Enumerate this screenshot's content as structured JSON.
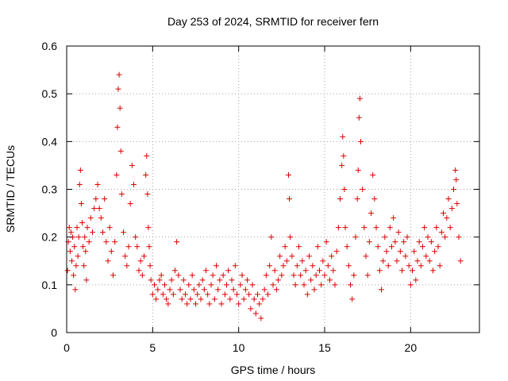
{
  "chart_data": {
    "type": "scatter",
    "title": "Day 253 of 2024, SRMTID for receiver fern",
    "xlabel": "GPS time / hours",
    "ylabel": "SRMTID / TECUs",
    "xlim": [
      0,
      24
    ],
    "ylim": [
      0,
      0.6
    ],
    "xticks": [
      0,
      5,
      10,
      15,
      20
    ],
    "yticks": [
      0,
      0.1,
      0.2,
      0.3,
      0.4,
      0.5,
      0.6
    ],
    "xtick_labels": [
      "0",
      "5",
      "10",
      "15",
      "20"
    ],
    "ytick_labels": [
      "0",
      "0.1",
      "0.2",
      "0.3",
      "0.4",
      "0.5",
      "0.6"
    ],
    "grid": true,
    "marker": "+",
    "series_color": "#dd0000",
    "series": [
      {
        "name": "SRMTID",
        "points": [
          [
            0.05,
            0.13
          ],
          [
            0.1,
            0.19
          ],
          [
            0.15,
            0.22
          ],
          [
            0.2,
            0.17
          ],
          [
            0.25,
            0.21
          ],
          [
            0.3,
            0.15
          ],
          [
            0.35,
            0.2
          ],
          [
            0.4,
            0.12
          ],
          [
            0.45,
            0.18
          ],
          [
            0.5,
            0.09
          ],
          [
            0.55,
            0.14
          ],
          [
            0.6,
            0.22
          ],
          [
            0.65,
            0.16
          ],
          [
            0.7,
            0.2
          ],
          [
            0.75,
            0.31
          ],
          [
            0.8,
            0.34
          ],
          [
            0.85,
            0.27
          ],
          [
            0.9,
            0.23
          ],
          [
            0.95,
            0.18
          ],
          [
            1.0,
            0.14
          ],
          [
            1.05,
            0.2
          ],
          [
            1.1,
            0.17
          ],
          [
            1.15,
            0.11
          ],
          [
            1.2,
            0.22
          ],
          [
            1.3,
            0.19
          ],
          [
            1.4,
            0.24
          ],
          [
            1.5,
            0.21
          ],
          [
            1.6,
            0.26
          ],
          [
            1.7,
            0.28
          ],
          [
            1.8,
            0.31
          ],
          [
            1.9,
            0.26
          ],
          [
            2.0,
            0.24
          ],
          [
            2.1,
            0.21
          ],
          [
            2.2,
            0.28
          ],
          [
            2.3,
            0.19
          ],
          [
            2.4,
            0.15
          ],
          [
            2.5,
            0.22
          ],
          [
            2.6,
            0.17
          ],
          [
            2.7,
            0.12
          ],
          [
            2.8,
            0.19
          ],
          [
            2.9,
            0.33
          ],
          [
            2.95,
            0.43
          ],
          [
            3.0,
            0.51
          ],
          [
            3.05,
            0.54
          ],
          [
            3.1,
            0.47
          ],
          [
            3.15,
            0.38
          ],
          [
            3.2,
            0.29
          ],
          [
            3.3,
            0.21
          ],
          [
            3.4,
            0.16
          ],
          [
            3.5,
            0.14
          ],
          [
            3.6,
            0.18
          ],
          [
            3.7,
            0.27
          ],
          [
            3.8,
            0.35
          ],
          [
            3.9,
            0.31
          ],
          [
            4.0,
            0.2
          ],
          [
            4.1,
            0.18
          ],
          [
            4.2,
            0.13
          ],
          [
            4.3,
            0.15
          ],
          [
            4.4,
            0.12
          ],
          [
            4.5,
            0.16
          ],
          [
            4.6,
            0.33
          ],
          [
            4.65,
            0.37
          ],
          [
            4.7,
            0.29
          ],
          [
            4.75,
            0.22
          ],
          [
            4.8,
            0.18
          ],
          [
            4.85,
            0.14
          ],
          [
            4.9,
            0.11
          ],
          [
            5.0,
            0.08
          ],
          [
            5.1,
            0.1
          ],
          [
            5.2,
            0.07
          ],
          [
            5.3,
            0.09
          ],
          [
            5.4,
            0.11
          ],
          [
            5.5,
            0.12
          ],
          [
            5.6,
            0.08
          ],
          [
            5.7,
            0.1
          ],
          [
            5.8,
            0.07
          ],
          [
            5.9,
            0.06
          ],
          [
            6.0,
            0.09
          ],
          [
            6.1,
            0.11
          ],
          [
            6.2,
            0.08
          ],
          [
            6.3,
            0.13
          ],
          [
            6.4,
            0.19
          ],
          [
            6.5,
            0.12
          ],
          [
            6.6,
            0.09
          ],
          [
            6.7,
            0.07
          ],
          [
            6.8,
            0.11
          ],
          [
            6.9,
            0.08
          ],
          [
            7.0,
            0.06
          ],
          [
            7.1,
            0.1
          ],
          [
            7.2,
            0.07
          ],
          [
            7.3,
            0.12
          ],
          [
            7.4,
            0.09
          ],
          [
            7.5,
            0.06
          ],
          [
            7.6,
            0.08
          ],
          [
            7.7,
            0.1
          ],
          [
            7.8,
            0.07
          ],
          [
            7.9,
            0.11
          ],
          [
            8.0,
            0.09
          ],
          [
            8.1,
            0.13
          ],
          [
            8.2,
            0.08
          ],
          [
            8.3,
            0.06
          ],
          [
            8.4,
            0.1
          ],
          [
            8.5,
            0.12
          ],
          [
            8.6,
            0.07
          ],
          [
            8.7,
            0.14
          ],
          [
            8.8,
            0.09
          ],
          [
            8.9,
            0.11
          ],
          [
            9.0,
            0.06
          ],
          [
            9.1,
            0.12
          ],
          [
            9.2,
            0.08
          ],
          [
            9.3,
            0.1
          ],
          [
            9.4,
            0.13
          ],
          [
            9.5,
            0.07
          ],
          [
            9.6,
            0.11
          ],
          [
            9.7,
            0.09
          ],
          [
            9.8,
            0.14
          ],
          [
            9.9,
            0.08
          ],
          [
            10.0,
            0.06
          ],
          [
            10.1,
            0.1
          ],
          [
            10.2,
            0.12
          ],
          [
            10.3,
            0.07
          ],
          [
            10.4,
            0.09
          ],
          [
            10.5,
            0.11
          ],
          [
            10.6,
            0.08
          ],
          [
            10.7,
            0.05
          ],
          [
            10.8,
            0.1
          ],
          [
            10.9,
            0.07
          ],
          [
            11.0,
            0.04
          ],
          [
            11.1,
            0.08
          ],
          [
            11.2,
            0.06
          ],
          [
            11.3,
            0.03
          ],
          [
            11.4,
            0.07
          ],
          [
            11.5,
            0.09
          ],
          [
            11.6,
            0.12
          ],
          [
            11.7,
            0.08
          ],
          [
            11.8,
            0.14
          ],
          [
            11.9,
            0.2
          ],
          [
            12.0,
            0.1
          ],
          [
            12.1,
            0.13
          ],
          [
            12.2,
            0.09
          ],
          [
            12.3,
            0.11
          ],
          [
            12.4,
            0.16
          ],
          [
            12.5,
            0.12
          ],
          [
            12.6,
            0.14
          ],
          [
            12.7,
            0.18
          ],
          [
            12.8,
            0.15
          ],
          [
            12.9,
            0.33
          ],
          [
            12.95,
            0.28
          ],
          [
            13.0,
            0.2
          ],
          [
            13.1,
            0.16
          ],
          [
            13.2,
            0.12
          ],
          [
            13.3,
            0.1
          ],
          [
            13.4,
            0.14
          ],
          [
            13.5,
            0.18
          ],
          [
            13.6,
            0.12
          ],
          [
            13.7,
            0.15
          ],
          [
            13.8,
            0.1
          ],
          [
            13.9,
            0.13
          ],
          [
            14.0,
            0.08
          ],
          [
            14.1,
            0.16
          ],
          [
            14.2,
            0.11
          ],
          [
            14.3,
            0.14
          ],
          [
            14.4,
            0.09
          ],
          [
            14.5,
            0.12
          ],
          [
            14.6,
            0.18
          ],
          [
            14.7,
            0.13
          ],
          [
            14.8,
            0.1
          ],
          [
            14.9,
            0.15
          ],
          [
            15.0,
            0.12
          ],
          [
            15.1,
            0.19
          ],
          [
            15.2,
            0.14
          ],
          [
            15.3,
            0.11
          ],
          [
            15.4,
            0.16
          ],
          [
            15.5,
            0.13
          ],
          [
            15.6,
            0.1
          ],
          [
            15.7,
            0.17
          ],
          [
            15.8,
            0.22
          ],
          [
            15.9,
            0.28
          ],
          [
            16.0,
            0.35
          ],
          [
            16.05,
            0.41
          ],
          [
            16.1,
            0.37
          ],
          [
            16.15,
            0.3
          ],
          [
            16.2,
            0.22
          ],
          [
            16.3,
            0.18
          ],
          [
            16.4,
            0.14
          ],
          [
            16.5,
            0.1
          ],
          [
            16.6,
            0.07
          ],
          [
            16.7,
            0.12
          ],
          [
            16.8,
            0.2
          ],
          [
            16.9,
            0.28
          ],
          [
            16.95,
            0.34
          ],
          [
            17.0,
            0.45
          ],
          [
            17.05,
            0.49
          ],
          [
            17.1,
            0.4
          ],
          [
            17.2,
            0.3
          ],
          [
            17.3,
            0.22
          ],
          [
            17.4,
            0.16
          ],
          [
            17.5,
            0.12
          ],
          [
            17.6,
            0.19
          ],
          [
            17.7,
            0.25
          ],
          [
            17.8,
            0.33
          ],
          [
            17.9,
            0.28
          ],
          [
            18.0,
            0.22
          ],
          [
            18.1,
            0.18
          ],
          [
            18.2,
            0.13
          ],
          [
            18.3,
            0.09
          ],
          [
            18.4,
            0.15
          ],
          [
            18.5,
            0.2
          ],
          [
            18.6,
            0.17
          ],
          [
            18.7,
            0.14
          ],
          [
            18.8,
            0.22
          ],
          [
            18.9,
            0.18
          ],
          [
            19.0,
            0.24
          ],
          [
            19.1,
            0.19
          ],
          [
            19.2,
            0.15
          ],
          [
            19.3,
            0.21
          ],
          [
            19.4,
            0.17
          ],
          [
            19.5,
            0.13
          ],
          [
            19.6,
            0.19
          ],
          [
            19.7,
            0.16
          ],
          [
            19.8,
            0.2
          ],
          [
            19.9,
            0.14
          ],
          [
            20.0,
            0.1
          ],
          [
            20.1,
            0.13
          ],
          [
            20.2,
            0.17
          ],
          [
            20.3,
            0.11
          ],
          [
            20.4,
            0.15
          ],
          [
            20.5,
            0.19
          ],
          [
            20.6,
            0.14
          ],
          [
            20.7,
            0.18
          ],
          [
            20.8,
            0.22
          ],
          [
            20.9,
            0.16
          ],
          [
            21.0,
            0.2
          ],
          [
            21.1,
            0.15
          ],
          [
            21.2,
            0.19
          ],
          [
            21.3,
            0.13
          ],
          [
            21.4,
            0.17
          ],
          [
            21.5,
            0.22
          ],
          [
            21.6,
            0.18
          ],
          [
            21.7,
            0.14
          ],
          [
            21.8,
            0.21
          ],
          [
            21.9,
            0.25
          ],
          [
            22.0,
            0.2
          ],
          [
            22.1,
            0.24
          ],
          [
            22.2,
            0.28
          ],
          [
            22.3,
            0.22
          ],
          [
            22.4,
            0.26
          ],
          [
            22.5,
            0.3
          ],
          [
            22.6,
            0.34
          ],
          [
            22.65,
            0.32
          ],
          [
            22.7,
            0.27
          ],
          [
            22.8,
            0.2
          ],
          [
            22.9,
            0.15
          ]
        ]
      }
    ]
  }
}
